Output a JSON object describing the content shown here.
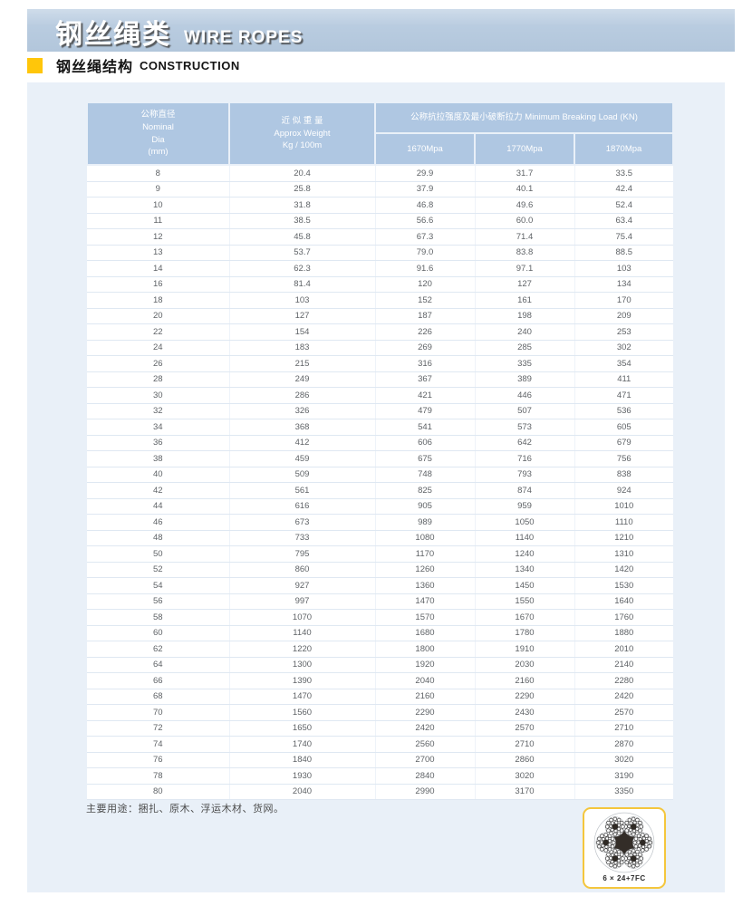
{
  "banner": {
    "title_cn": "钢丝绳类",
    "title_en": "WIRE ROPES"
  },
  "section": {
    "title_cn": "钢丝绳结构",
    "title_en": "CONSTRUCTION"
  },
  "table": {
    "headers": {
      "col_dia": "公称直径\nNominal\nDia\n(mm)",
      "col_weight": "近 似 重 量\nApprox Weight\nKg / 100m",
      "col_breaking": "公称抗拉强度及最小破断拉力 Minimum Breaking Load (KN)",
      "sub_cols": [
        "1670Mpa",
        "1770Mpa",
        "1870Mpa"
      ]
    },
    "rows": [
      [
        "8",
        "20.4",
        "29.9",
        "31.7",
        "33.5"
      ],
      [
        "9",
        "25.8",
        "37.9",
        "40.1",
        "42.4"
      ],
      [
        "10",
        "31.8",
        "46.8",
        "49.6",
        "52.4"
      ],
      [
        "11",
        "38.5",
        "56.6",
        "60.0",
        "63.4"
      ],
      [
        "12",
        "45.8",
        "67.3",
        "71.4",
        "75.4"
      ],
      [
        "13",
        "53.7",
        "79.0",
        "83.8",
        "88.5"
      ],
      [
        "14",
        "62.3",
        "91.6",
        "97.1",
        "103"
      ],
      [
        "16",
        "81.4",
        "120",
        "127",
        "134"
      ],
      [
        "18",
        "103",
        "152",
        "161",
        "170"
      ],
      [
        "20",
        "127",
        "187",
        "198",
        "209"
      ],
      [
        "22",
        "154",
        "226",
        "240",
        "253"
      ],
      [
        "24",
        "183",
        "269",
        "285",
        "302"
      ],
      [
        "26",
        "215",
        "316",
        "335",
        "354"
      ],
      [
        "28",
        "249",
        "367",
        "389",
        "411"
      ],
      [
        "30",
        "286",
        "421",
        "446",
        "471"
      ],
      [
        "32",
        "326",
        "479",
        "507",
        "536"
      ],
      [
        "34",
        "368",
        "541",
        "573",
        "605"
      ],
      [
        "36",
        "412",
        "606",
        "642",
        "679"
      ],
      [
        "38",
        "459",
        "675",
        "716",
        "756"
      ],
      [
        "40",
        "509",
        "748",
        "793",
        "838"
      ],
      [
        "42",
        "561",
        "825",
        "874",
        "924"
      ],
      [
        "44",
        "616",
        "905",
        "959",
        "1010"
      ],
      [
        "46",
        "673",
        "989",
        "1050",
        "1110"
      ],
      [
        "48",
        "733",
        "1080",
        "1140",
        "1210"
      ],
      [
        "50",
        "795",
        "1170",
        "1240",
        "1310"
      ],
      [
        "52",
        "860",
        "1260",
        "1340",
        "1420"
      ],
      [
        "54",
        "927",
        "1360",
        "1450",
        "1530"
      ],
      [
        "56",
        "997",
        "1470",
        "1550",
        "1640"
      ],
      [
        "58",
        "1070",
        "1570",
        "1670",
        "1760"
      ],
      [
        "60",
        "1140",
        "1680",
        "1780",
        "1880"
      ],
      [
        "62",
        "1220",
        "1800",
        "1910",
        "2010"
      ],
      [
        "64",
        "1300",
        "1920",
        "2030",
        "2140"
      ],
      [
        "66",
        "1390",
        "2040",
        "2160",
        "2280"
      ],
      [
        "68",
        "1470",
        "2160",
        "2290",
        "2420"
      ],
      [
        "70",
        "1560",
        "2290",
        "2430",
        "2570"
      ],
      [
        "72",
        "1650",
        "2420",
        "2570",
        "2710"
      ],
      [
        "74",
        "1740",
        "2560",
        "2710",
        "2870"
      ],
      [
        "76",
        "1840",
        "2700",
        "2860",
        "3020"
      ],
      [
        "78",
        "1930",
        "2840",
        "3020",
        "3190"
      ],
      [
        "80",
        "2040",
        "2990",
        "3170",
        "3350"
      ]
    ]
  },
  "footer": {
    "usage_note": "主要用途：捆扎、原木、浮运木材、货网。",
    "construction_label": "6 × 24+7FC"
  },
  "colors": {
    "banner_bg": "#b7cbdf",
    "panel_bg": "#e9f0f8",
    "header_cell_bg": "#afc7e2",
    "bullet_yellow": "#ffc60a",
    "construction_border": "#f4c63d"
  }
}
